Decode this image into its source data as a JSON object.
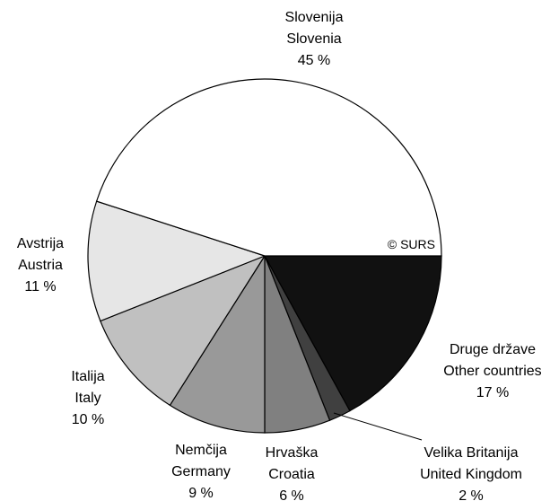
{
  "chart_data": {
    "type": "pie",
    "categories": [
      [
        "Druge države",
        "Other countries"
      ],
      [
        "Velika Britanija",
        "United Kingdom"
      ],
      [
        "Hrvaška",
        "Croatia"
      ],
      [
        "Nemčija",
        "Germany"
      ],
      [
        "Italija",
        "Italy"
      ],
      [
        "Avstrija",
        "Austria"
      ],
      [
        "Slovenija",
        "Slovenia"
      ]
    ],
    "values": [
      17,
      2,
      6,
      9,
      10,
      11,
      45
    ],
    "value_labels": [
      "17 %",
      "2 %",
      "6 %",
      "9 %",
      "10 %",
      "11 %",
      "45 %"
    ],
    "colors": [
      "#111111",
      "#404040",
      "#808080",
      "#999999",
      "#c0c0c0",
      "#e6e6e6",
      "#ffffff"
    ],
    "annotation": "© SURS"
  }
}
